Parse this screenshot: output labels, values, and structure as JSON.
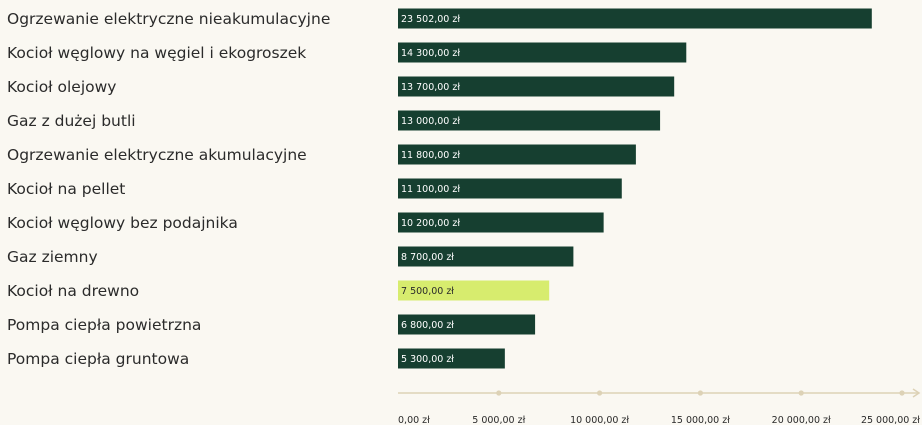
{
  "chart_data": {
    "type": "bar",
    "orientation": "horizontal",
    "categories": [
      "Ogrzewanie elektryczne nieakumulacyjne",
      "Kocioł węglowy na węgiel i ekogroszek",
      "Kocioł olejowy",
      "Gaz z dużej butli",
      "Ogrzewanie elektryczne akumulacyjne",
      "Kocioł na pellet",
      "Kocioł węglowy bez podajnika",
      "Gaz ziemny",
      "Kocioł na drewno",
      "Pompa ciepła powietrzna",
      "Pompa ciepła gruntowa"
    ],
    "values": [
      23502,
      14300,
      13700,
      13000,
      11800,
      11100,
      10200,
      8700,
      7500,
      6800,
      5300
    ],
    "value_labels": [
      "23 502,00 zł",
      "14 300,00 zł",
      "13 700,00 zł",
      "13 000,00 zł",
      "11 800,00 zł",
      "11 100,00 zł",
      "10 200,00 zł",
      "8 700,00 zł",
      "7 500,00 zł",
      "6 800,00 zł",
      "5 300,00 zł"
    ],
    "highlight_index": 8,
    "xlim": [
      0,
      25000
    ],
    "xticks": [
      0,
      5000,
      10000,
      15000,
      20000,
      25000
    ],
    "xtick_labels": [
      "0,00 zł",
      "5 000,00 zł",
      "10 000,00 zł",
      "15 000,00 zł",
      "20 000,00 zł",
      "25 000,00 zł"
    ],
    "title": "",
    "xlabel": "",
    "ylabel": "",
    "grid": false,
    "colors": {
      "bar": "#163f30",
      "highlight": "#d7ec6e",
      "axis": "#ddd2b6",
      "label_on_bar": "#ffffff",
      "label_on_highlight": "#2b2b2b",
      "text": "#2b2b2b",
      "background": "#faf8f2"
    }
  }
}
